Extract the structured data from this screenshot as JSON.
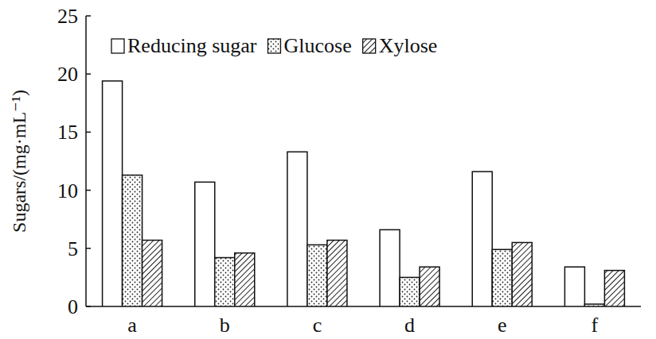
{
  "chart_data": {
    "type": "bar",
    "y_label": "Sugars/(mg·mL⁻¹)",
    "categories": [
      "a",
      "b",
      "c",
      "d",
      "e",
      "f"
    ],
    "series": [
      {
        "name": "Reducing sugar",
        "color": "#ffffff",
        "values": [
          19.4,
          10.7,
          13.3,
          6.6,
          11.6,
          3.4
        ]
      },
      {
        "name": "Glucose",
        "color": "#ffffff",
        "values": [
          11.3,
          4.2,
          5.3,
          2.5,
          4.9,
          0.2
        ]
      },
      {
        "name": "Xylose",
        "color": "#ffffff",
        "values": [
          5.7,
          4.6,
          5.7,
          3.4,
          5.5,
          3.1
        ]
      }
    ],
    "ylim": [
      0,
      25
    ],
    "yticks": [
      0,
      5,
      10,
      15,
      20,
      25
    ],
    "grid": false,
    "legend": "top"
  }
}
